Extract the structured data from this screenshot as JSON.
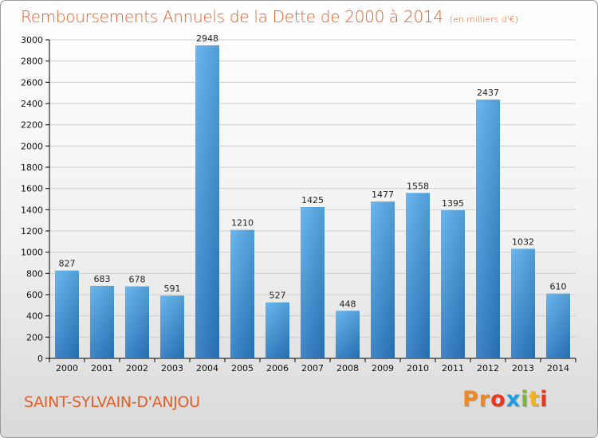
{
  "chart_data": {
    "type": "bar",
    "title": "Remboursements Annuels de la Dette de 2000 à 2014",
    "subtitle": "(en milliers d'€)",
    "categories": [
      "2000",
      "2001",
      "2002",
      "2003",
      "2004",
      "2005",
      "2006",
      "2007",
      "2008",
      "2009",
      "2010",
      "2011",
      "2012",
      "2013",
      "2014"
    ],
    "values": [
      827,
      683,
      678,
      591,
      2948,
      1210,
      527,
      1425,
      448,
      1477,
      1558,
      1395,
      2437,
      1032,
      610
    ],
    "ylim": [
      0,
      3000
    ],
    "yticks": [
      0,
      200,
      400,
      600,
      800,
      1000,
      1200,
      1400,
      1600,
      1800,
      2000,
      2200,
      2400,
      2600,
      2800,
      3000
    ],
    "grid": true,
    "bar_color": "#3a8fd8",
    "data_labels": true
  },
  "footer": {
    "commune": "SAINT-SYLVAIN-D'ANJOU",
    "logo_letters": [
      "P",
      "r",
      "o",
      "x",
      "i",
      "t",
      "i"
    ],
    "logo_colors": [
      "#f08a1e",
      "#f08a1e",
      "#e8371c",
      "#1f9be0",
      "#7cb82f",
      "#f0b21e",
      "#e8371c"
    ]
  },
  "colors": {
    "title": "#e0602a",
    "grid": "#cfcfcf",
    "axis": "#000000"
  }
}
